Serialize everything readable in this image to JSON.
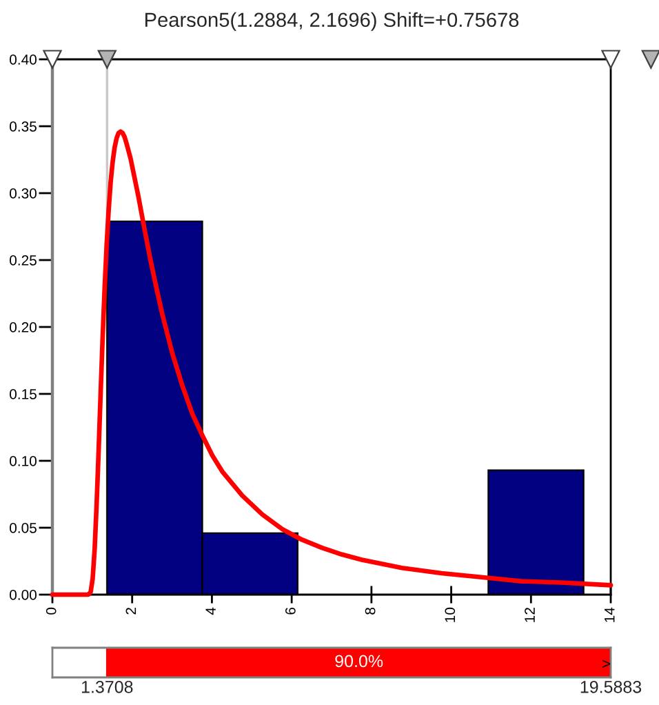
{
  "chart_data": [
    {
      "type": "histogram",
      "title": "Pearson5(1.2884, 2.1696) Shift=+0.75678",
      "series": [
        {
          "type": "histogram",
          "bins": [
            1.37,
            3.76,
            6.15,
            8.54,
            10.93,
            13.32
          ],
          "values": [
            0.279,
            0.046,
            0,
            0,
            0.093
          ],
          "color": "#000080"
        },
        {
          "type": "line",
          "color": "#ff0000",
          "x": [
            0,
            0.9,
            0.96,
            1.01,
            1.06,
            1.11,
            1.16,
            1.21,
            1.26,
            1.31,
            1.36,
            1.41,
            1.46,
            1.51,
            1.56,
            1.61,
            1.66,
            1.71,
            1.76,
            1.81,
            1.86,
            1.96,
            2.16,
            2.31,
            2.46,
            2.61,
            2.76,
            3.01,
            3.26,
            3.51,
            3.76,
            4.01,
            4.26,
            4.76,
            5.26,
            5.76,
            6.26,
            6.76,
            7.26,
            7.76,
            8.76,
            9.76,
            10.76,
            11.76,
            12.76,
            14
          ],
          "values": [
            0,
            0,
            0.002,
            0.012,
            0.034,
            0.068,
            0.108,
            0.151,
            0.192,
            0.229,
            0.261,
            0.287,
            0.308,
            0.323,
            0.334,
            0.341,
            0.345,
            0.346,
            0.345,
            0.342,
            0.337,
            0.326,
            0.297,
            0.273,
            0.25,
            0.229,
            0.209,
            0.18,
            0.156,
            0.135,
            0.119,
            0.104,
            0.092,
            0.074,
            0.06,
            0.049,
            0.041,
            0.035,
            0.03,
            0.026,
            0.02,
            0.016,
            0.013,
            0.01,
            0.009,
            0.007
          ]
        }
      ],
      "xlim": [
        0,
        14
      ],
      "xticks": [
        0,
        2,
        4,
        6,
        8,
        10,
        12,
        14
      ],
      "ylim": [
        0,
        0.4
      ],
      "yticks": [
        {
          "value": 0,
          "label": "0.00"
        },
        {
          "value": 0.05,
          "label": "0.05"
        },
        {
          "value": 0.1,
          "label": "0.10"
        },
        {
          "value": 0.15,
          "label": "0.15"
        },
        {
          "value": 0.2,
          "label": "0.20"
        },
        {
          "value": 0.25,
          "label": "0.25"
        },
        {
          "value": 0.3,
          "label": "0.30"
        },
        {
          "value": 0.35,
          "label": "0.35"
        },
        {
          "value": 0.4,
          "label": "0.40"
        }
      ],
      "ref_lines": [
        {
          "axis": "x",
          "value": 1.3708,
          "color": "#c8c8c8"
        }
      ]
    },
    {
      "type": "other",
      "annotations": [
        "90.0%",
        "1.3708",
        "19.5883",
        ">"
      ]
    }
  ]
}
